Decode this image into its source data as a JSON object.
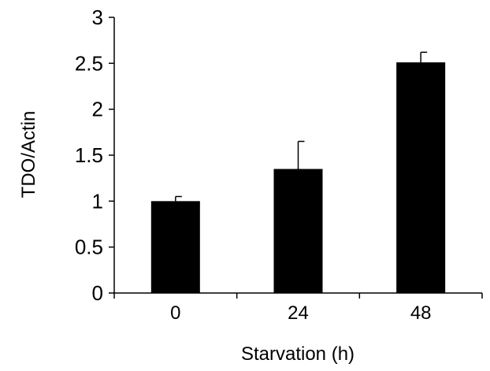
{
  "chart_data": {
    "type": "bar",
    "categories": [
      "0",
      "24",
      "48"
    ],
    "values": [
      1.0,
      1.35,
      2.51
    ],
    "error_bars": [
      0.05,
      0.3,
      0.11
    ],
    "xlabel": "Starvation (h)",
    "ylabel": "TDO/Actin",
    "ylim": [
      0,
      3
    ],
    "yticks": [
      0,
      0.5,
      1,
      1.5,
      2,
      2.5,
      3
    ],
    "ytick_labels": [
      "0",
      "0.5",
      "1",
      "1.5",
      "2",
      "2.5",
      "3"
    ],
    "grid": false,
    "legend": "none",
    "bar_color": "#000000"
  }
}
